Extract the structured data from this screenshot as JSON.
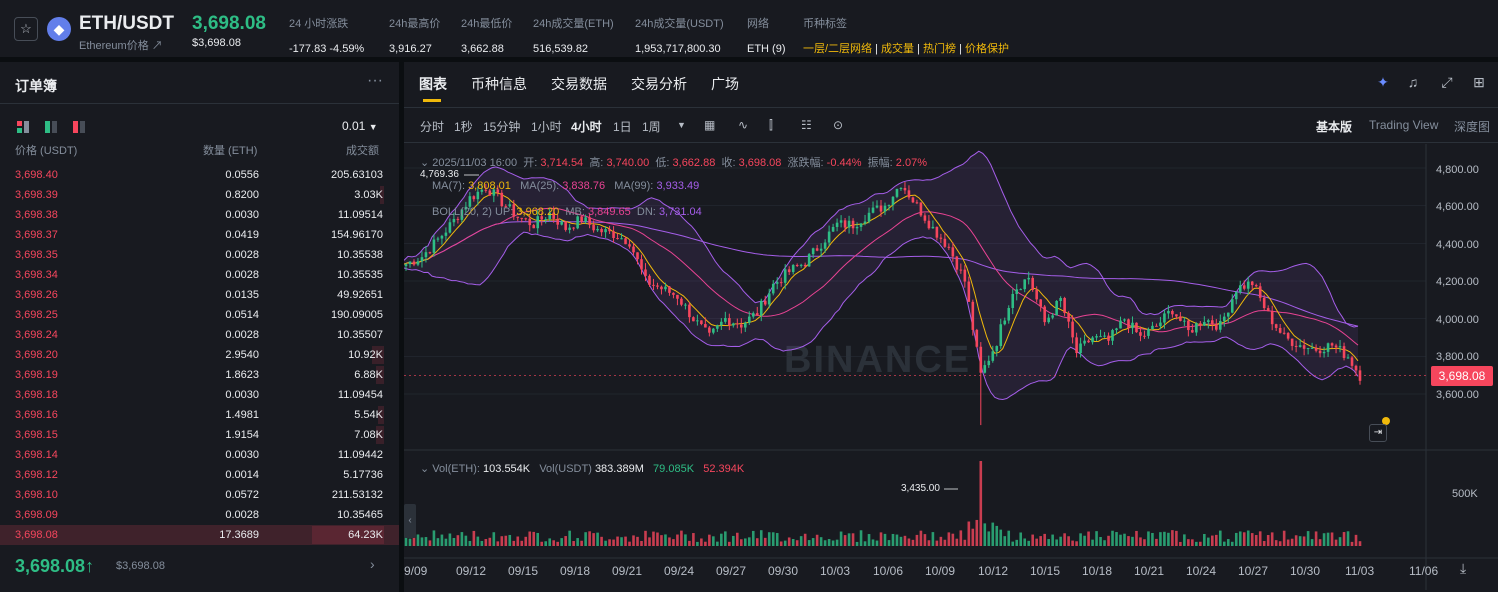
{
  "header": {
    "pair": "ETH/USDT",
    "subtitle": "Ethereum价格",
    "price": "3,698.08",
    "price_usd": "$3,698.08",
    "stats": [
      {
        "label": "24 小时涨跌",
        "value": "-177.83 -4.59%"
      },
      {
        "label": "24h最高价",
        "value": "3,916.27"
      },
      {
        "label": "24h最低价",
        "value": "3,662.88"
      },
      {
        "label": "24h成交量(ETH)",
        "value": "516,539.82"
      },
      {
        "label": "24h成交量(USDT)",
        "value": "1,953,717,800.30"
      },
      {
        "label": "网络",
        "value": "ETH (9)"
      }
    ],
    "tags_label": "币种标签",
    "tags": [
      "一层/二层网络",
      "成交量",
      "热门榜",
      "价格保护"
    ]
  },
  "orderbook": {
    "title": "订单簿",
    "precision": "0.01",
    "col_price": "价格 (USDT)",
    "col_qty": "数量 (ETH)",
    "col_total": "成交额",
    "rows": [
      {
        "p": "3,698.40",
        "q": "0.0556",
        "t": "205.63103",
        "d": 0
      },
      {
        "p": "3,698.39",
        "q": "0.8200",
        "t": "3.03K",
        "d": 0.05
      },
      {
        "p": "3,698.38",
        "q": "0.0030",
        "t": "11.09514",
        "d": 0
      },
      {
        "p": "3,698.37",
        "q": "0.0419",
        "t": "154.96170",
        "d": 0
      },
      {
        "p": "3,698.35",
        "q": "0.0028",
        "t": "10.35538",
        "d": 0
      },
      {
        "p": "3,698.34",
        "q": "0.0028",
        "t": "10.35535",
        "d": 0
      },
      {
        "p": "3,698.26",
        "q": "0.0135",
        "t": "49.92651",
        "d": 0
      },
      {
        "p": "3,698.25",
        "q": "0.0514",
        "t": "190.09005",
        "d": 0
      },
      {
        "p": "3,698.24",
        "q": "0.0028",
        "t": "10.35507",
        "d": 0
      },
      {
        "p": "3,698.20",
        "q": "2.9540",
        "t": "10.92K",
        "d": 0.17
      },
      {
        "p": "3,698.19",
        "q": "1.8623",
        "t": "6.88K",
        "d": 0.11
      },
      {
        "p": "3,698.18",
        "q": "0.0030",
        "t": "11.09454",
        "d": 0
      },
      {
        "p": "3,698.16",
        "q": "1.4981",
        "t": "5.54K",
        "d": 0.08
      },
      {
        "p": "3,698.15",
        "q": "1.9154",
        "t": "7.08K",
        "d": 0.11
      },
      {
        "p": "3,698.14",
        "q": "0.0030",
        "t": "11.09442",
        "d": 0
      },
      {
        "p": "3,698.12",
        "q": "0.0014",
        "t": "5.17736",
        "d": 0
      },
      {
        "p": "3,698.10",
        "q": "0.0572",
        "t": "211.53132",
        "d": 0
      },
      {
        "p": "3,698.09",
        "q": "0.0028",
        "t": "10.35465",
        "d": 0
      },
      {
        "p": "3,698.08",
        "q": "17.3689",
        "t": "64.23K",
        "d": 1
      }
    ],
    "last_price": "3,698.08",
    "last_usd": "$3,698.08"
  },
  "chart": {
    "tabs": [
      "图表",
      "币种信息",
      "交易数据",
      "交易分析",
      "广场"
    ],
    "intervals": [
      "分时",
      "1秒",
      "15分钟",
      "1小时",
      "4小时",
      "1日",
      "1周"
    ],
    "active_interval": "4小时",
    "views": [
      "基本版",
      "Trading View",
      "深度图"
    ],
    "ohlc": {
      "date": "2025/11/03 16:00",
      "o_l": "开:",
      "o": "3,714.54",
      "h_l": "高:",
      "h": "3,740.00",
      "l_l": "低:",
      "l": "3,662.88",
      "c_l": "收:",
      "c": "3,698.08",
      "chg_l": "涨跌幅:",
      "chg": "-0.44%",
      "amp_l": "振幅:",
      "amp": "2.07%"
    },
    "ma": {
      "ma7_l": "MA(7):",
      "ma7": "3,808.01",
      "ma25_l": "MA(25):",
      "ma25": "3,838.76",
      "ma99_l": "MA(99):",
      "ma99": "3,933.49"
    },
    "boll": {
      "label": "BOLL(20, 2) UP:",
      "up": "3,968.20",
      "mb_l": "MB:",
      "mb": "3,849.65",
      "dn_l": "DN:",
      "dn": "3,731.04"
    },
    "vol": {
      "l1": "Vol(ETH):",
      "v1": "103.554K",
      "l2": "Vol(USDT)",
      "v2": "383.389M",
      "v3": "79.085K",
      "v4": "52.394K"
    },
    "yticks": [
      "4,800.00",
      "4,600.00",
      "4,400.00",
      "4,200.00",
      "4,000.00",
      "3,800.00",
      "3,600.00"
    ],
    "vol_tick": "500K",
    "current_price": "3,698.08",
    "high_label": "4,769.36",
    "low_label": "3,435.00",
    "xticks": [
      "9/09",
      "09/12",
      "09/15",
      "09/18",
      "09/21",
      "09/24",
      "09/27",
      "09/30",
      "10/03",
      "10/06",
      "10/09",
      "10/12",
      "10/15",
      "10/18",
      "10/21",
      "10/24",
      "10/27",
      "10/30",
      "11/03",
      "11/06"
    ],
    "watermark": "BINANCE",
    "colors": {
      "up": "#2ebd85",
      "down": "#f6465d",
      "ma7": "#f0b90b",
      "ma25": "#e84393",
      "ma99": "#a55eea"
    }
  },
  "chart_data": {
    "type": "candlestick",
    "interval": "4小时",
    "ylim": [
      3400,
      4900
    ],
    "close_path": [
      [
        0,
        4290
      ],
      [
        4,
        4330
      ],
      [
        8,
        4420
      ],
      [
        12,
        4520
      ],
      [
        16,
        4640
      ],
      [
        20,
        4700
      ],
      [
        24,
        4620
      ],
      [
        28,
        4540
      ],
      [
        32,
        4500
      ],
      [
        36,
        4560
      ],
      [
        40,
        4480
      ],
      [
        44,
        4530
      ],
      [
        48,
        4470
      ],
      [
        52,
        4450
      ],
      [
        56,
        4410
      ],
      [
        60,
        4200
      ],
      [
        64,
        4160
      ],
      [
        68,
        4120
      ],
      [
        72,
        4000
      ],
      [
        76,
        3900
      ],
      [
        80,
        4000
      ],
      [
        84,
        3970
      ],
      [
        88,
        4030
      ],
      [
        92,
        4180
      ],
      [
        96,
        4250
      ],
      [
        100,
        4300
      ],
      [
        104,
        4400
      ],
      [
        108,
        4500
      ],
      [
        112,
        4500
      ],
      [
        116,
        4560
      ],
      [
        120,
        4600
      ],
      [
        124,
        4720
      ],
      [
        128,
        4600
      ],
      [
        132,
        4480
      ],
      [
        136,
        4380
      ],
      [
        140,
        4200
      ],
      [
        144,
        3700
      ],
      [
        148,
        3880
      ],
      [
        152,
        4150
      ],
      [
        156,
        4220
      ],
      [
        160,
        3980
      ],
      [
        164,
        4100
      ],
      [
        168,
        3820
      ],
      [
        172,
        3900
      ],
      [
        176,
        3880
      ],
      [
        180,
        4000
      ],
      [
        184,
        3900
      ],
      [
        188,
        3960
      ],
      [
        192,
        4050
      ],
      [
        196,
        3930
      ],
      [
        200,
        4000
      ],
      [
        204,
        3960
      ],
      [
        208,
        4160
      ],
      [
        212,
        4190
      ],
      [
        216,
        4020
      ],
      [
        220,
        3900
      ],
      [
        224,
        3860
      ],
      [
        228,
        3840
      ],
      [
        232,
        3860
      ],
      [
        236,
        3800
      ],
      [
        239,
        3698
      ]
    ]
  }
}
